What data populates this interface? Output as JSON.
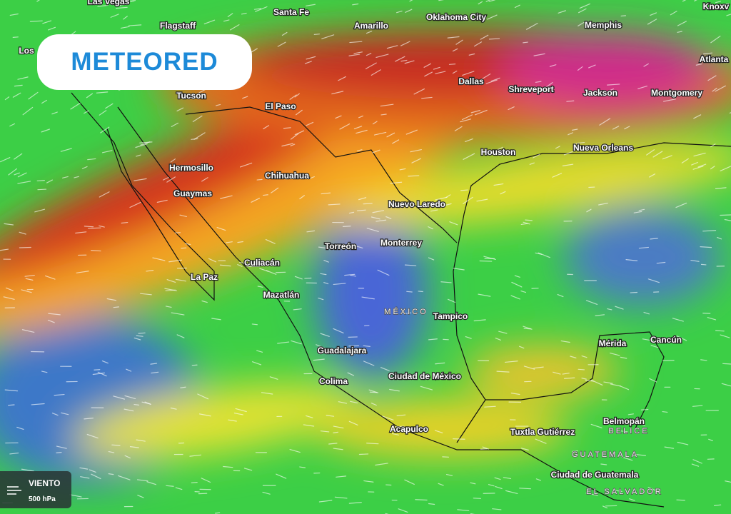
{
  "logo": "METEORED",
  "cities": [
    "Las Vegas",
    "Santa Fe",
    "Oklahoma City",
    "Knoxv",
    "Flagstaff",
    "Amarillo",
    "Memphis",
    "Los",
    "Atlanta",
    "Tucson",
    "Dallas",
    "Shreveport",
    "Jackson",
    "Montgomery",
    "El Paso",
    "Houston",
    "Nueva Orleans",
    "Hermosillo",
    "Chihuahua",
    "Guaymas",
    "Nuevo Laredo",
    "Torreón",
    "Monterrey",
    "Culiacán",
    "La Paz",
    "Mazatlán",
    "Tampico",
    "Mérida",
    "Cancún",
    "Guadalajara",
    "Colima",
    "Ciudad de México",
    "Belmopán",
    "Acapulco",
    "Tuxtla Gutiérrez",
    "Ciudad de Guatemala"
  ],
  "countries": [
    "MÉXICO",
    "BELICE",
    "GUATEMALA",
    "EL SALVADOR"
  ],
  "legend": {
    "layer": "VIENTO",
    "level": "500 hPa"
  }
}
